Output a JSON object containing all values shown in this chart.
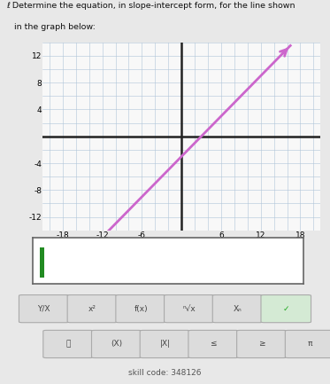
{
  "title_line1": "ℓ Determine the equation, in slope-intercept form, for the line shown",
  "title_line2": "   in the graph below:",
  "xlim": [
    -21,
    21
  ],
  "ylim": [
    -14,
    14
  ],
  "xticks": [
    -18,
    -12,
    -6,
    6,
    12,
    18
  ],
  "yticks": [
    -12,
    -8,
    -4,
    4,
    8,
    12
  ],
  "xtick_labels": [
    "-18",
    "-12",
    "-6",
    "6",
    "12",
    "18"
  ],
  "ytick_labels": [
    "-12",
    "-8",
    "-4",
    "4",
    "8",
    "12"
  ],
  "line_slope": 1,
  "line_intercept": -3,
  "line_color": "#cc66cc",
  "line_x_start": -11.5,
  "line_x_end": 16.5,
  "grid_color": "#b0c4d8",
  "axis_color": "#222222",
  "bg_color": "#e8e8e8",
  "plot_bg": "#f8f8f8",
  "tick_fontsize": 6.5,
  "arrow_color": "#cc66cc",
  "skill_code": "skill code: 348126",
  "btn_row1": [
    "Y/X",
    "x²",
    "f(x)",
    "ⁿ√x",
    "Xₙ",
    "✓"
  ],
  "btn_row2": [
    "🗑",
    "(X)",
    "|X|",
    "≤",
    "≥",
    "π"
  ]
}
